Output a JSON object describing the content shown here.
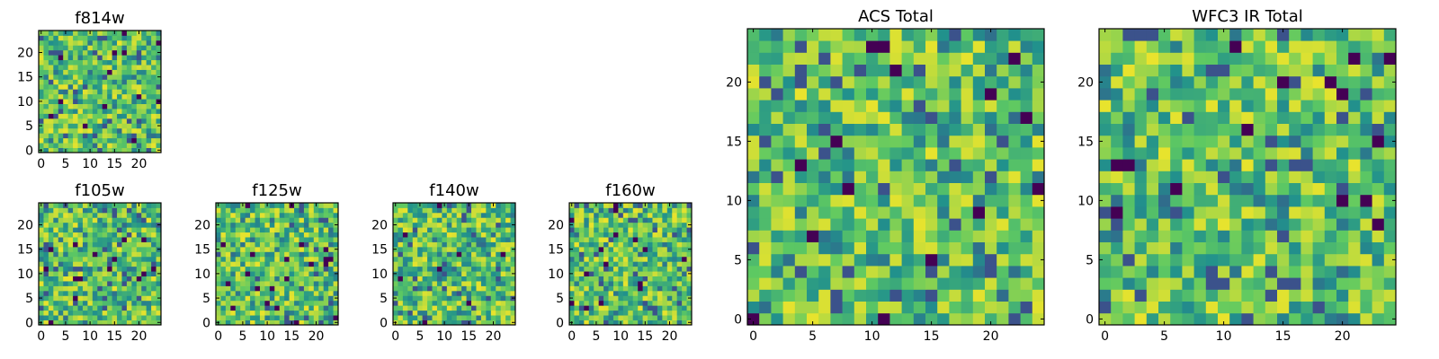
{
  "colormap": [
    "#440154",
    "#3b528b",
    "#21918c",
    "#5ec962",
    "#fde725"
  ],
  "chart_data": [
    {
      "type": "heatmap",
      "title": "f814w",
      "grid_size": 25,
      "xlim": [
        0,
        24
      ],
      "ylim": [
        0,
        24
      ],
      "xticks": [
        0,
        5,
        10,
        15,
        20
      ],
      "yticks": [
        0,
        5,
        10,
        15,
        20
      ],
      "xlabel": "",
      "ylabel": "",
      "seed": 814,
      "values_note": "",
      "colormap": "viridis"
    },
    {
      "type": "heatmap",
      "title": "f105w",
      "grid_size": 25,
      "xlim": [
        0,
        24
      ],
      "ylim": [
        0,
        24
      ],
      "xticks": [
        0,
        5,
        10,
        15,
        20
      ],
      "yticks": [
        0,
        5,
        10,
        15,
        20
      ],
      "xlabel": "",
      "ylabel": "",
      "seed": 105,
      "colormap": "viridis"
    },
    {
      "type": "heatmap",
      "title": "f125w",
      "grid_size": 25,
      "xlim": [
        0,
        24
      ],
      "ylim": [
        0,
        24
      ],
      "xticks": [
        0,
        5,
        10,
        15,
        20
      ],
      "yticks": [
        0,
        5,
        10,
        15,
        20
      ],
      "xlabel": "",
      "ylabel": "",
      "seed": 125,
      "colormap": "viridis"
    },
    {
      "type": "heatmap",
      "title": "f140w",
      "grid_size": 25,
      "xlim": [
        0,
        24
      ],
      "ylim": [
        0,
        24
      ],
      "xticks": [
        0,
        5,
        10,
        15,
        20
      ],
      "yticks": [
        0,
        5,
        10,
        15,
        20
      ],
      "xlabel": "",
      "ylabel": "",
      "seed": 140,
      "colormap": "viridis"
    },
    {
      "type": "heatmap",
      "title": "f160w",
      "grid_size": 25,
      "xlim": [
        0,
        24
      ],
      "ylim": [
        0,
        24
      ],
      "xticks": [
        0,
        5,
        10,
        15,
        20
      ],
      "yticks": [
        0,
        5,
        10,
        15,
        20
      ],
      "xlabel": "",
      "ylabel": "",
      "seed": 160,
      "colormap": "viridis"
    },
    {
      "type": "heatmap",
      "title": "ACS Total",
      "grid_size": 25,
      "xlim": [
        0,
        24
      ],
      "ylim": [
        0,
        24
      ],
      "xticks": [
        0,
        5,
        10,
        15,
        20
      ],
      "yticks": [
        0,
        5,
        10,
        15,
        20
      ],
      "xlabel": "",
      "ylabel": "",
      "seed": 7,
      "colormap": "viridis"
    },
    {
      "type": "heatmap",
      "title": "WFC3 IR Total",
      "grid_size": 25,
      "xlim": [
        0,
        24
      ],
      "ylim": [
        0,
        24
      ],
      "xticks": [
        0,
        5,
        10,
        15,
        20
      ],
      "yticks": [
        0,
        5,
        10,
        15,
        20
      ],
      "xlabel": "",
      "ylabel": "",
      "seed": 3,
      "colormap": "viridis"
    }
  ]
}
